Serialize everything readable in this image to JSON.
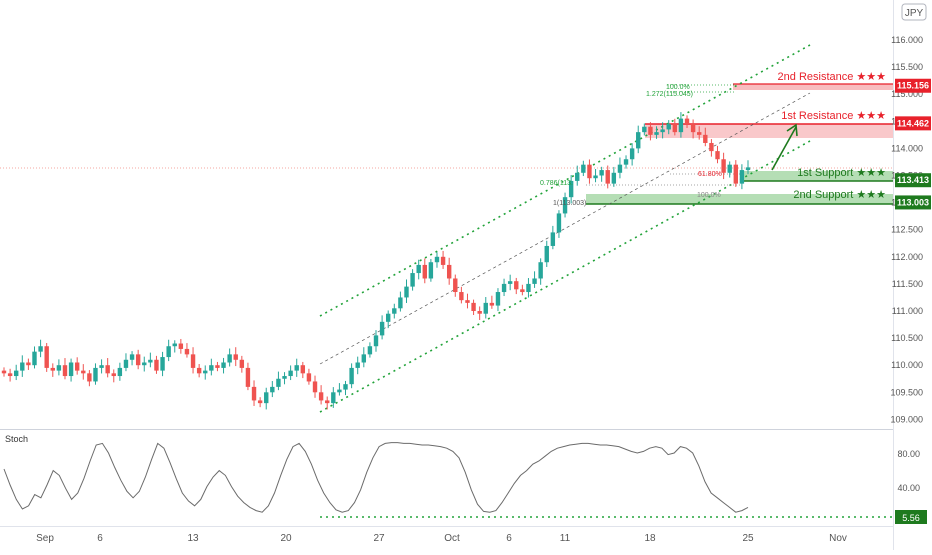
{
  "header": {
    "symbol": "JPY"
  },
  "price_axis": {
    "ticks": [
      "116.000",
      "115.500",
      "115.000",
      "114.500",
      "114.000",
      "113.500",
      "113.000",
      "112.500",
      "112.000",
      "111.500",
      "111.000",
      "110.500",
      "110.000",
      "109.500",
      "109.000"
    ],
    "badges": [
      {
        "value": "115.156",
        "color": "#e8212b"
      },
      {
        "value": "114.462",
        "color": "#e8212b"
      },
      {
        "value": "113.413",
        "color": "#1e7a1e"
      },
      {
        "value": "113.003",
        "color": "#1e7a1e"
      }
    ]
  },
  "date_axis": {
    "labels": [
      "Sep",
      "6",
      "13",
      "20",
      "27",
      "Oct",
      "6",
      "11",
      "18",
      "25",
      "Nov"
    ]
  },
  "levels": {
    "r2": {
      "label": "2nd Resistance ★★★",
      "price": 115.156,
      "color": "#e8212b"
    },
    "r1": {
      "label": "1st Resistance ★★★",
      "price": 114.462,
      "color": "#e8212b"
    },
    "s1": {
      "label": "1st Support ★★★",
      "price": 113.413,
      "color": "#1e7a1e"
    },
    "s2": {
      "label": "2nd Support ★★★",
      "price": 113.003,
      "color": "#1e7a1e"
    }
  },
  "fib_labels": {
    "f100_top": "100.0%",
    "f1272": "1.272(115.045)",
    "f618": "61.80%",
    "f786": "0.786(113.",
    "f100": "100.0%",
    "f1": "1(113.003)"
  },
  "stoch": {
    "title": "Stoch",
    "ticks": [
      "80.00",
      "40.00"
    ],
    "current": "5.56",
    "color": "#1e7a1e"
  },
  "chart_data": {
    "type": "candlestick",
    "instrument": "JPY",
    "ylim": [
      108.9,
      116.55
    ],
    "price_ticks": [
      116.0,
      115.5,
      115.0,
      114.5,
      114.0,
      113.5,
      113.0,
      112.5,
      112.0,
      111.5,
      111.0,
      110.5,
      110.0,
      109.5,
      109.0
    ],
    "x_labels": [
      "Sep",
      "6",
      "13",
      "20",
      "27",
      "Oct",
      "6",
      "11",
      "18",
      "25",
      "Nov"
    ],
    "close_series": [
      109.85,
      109.8,
      109.9,
      110.05,
      110.0,
      110.25,
      110.35,
      109.95,
      109.9,
      110.0,
      109.8,
      110.05,
      109.9,
      109.85,
      109.7,
      109.95,
      110.0,
      109.85,
      109.8,
      109.95,
      110.1,
      110.2,
      110.0,
      110.05,
      110.1,
      109.9,
      110.15,
      110.35,
      110.4,
      110.3,
      110.2,
      109.95,
      109.85,
      109.9,
      110.0,
      109.95,
      110.05,
      110.2,
      110.1,
      109.95,
      109.6,
      109.35,
      109.3,
      109.5,
      109.6,
      109.75,
      109.8,
      109.9,
      110.0,
      109.85,
      109.7,
      109.5,
      109.35,
      109.3,
      109.5,
      109.55,
      109.65,
      109.95,
      110.05,
      110.2,
      110.35,
      110.55,
      110.8,
      110.95,
      111.05,
      111.25,
      111.45,
      111.7,
      111.85,
      111.6,
      111.9,
      112.0,
      111.85,
      111.6,
      111.35,
      111.2,
      111.15,
      111.0,
      110.95,
      111.15,
      111.1,
      111.35,
      111.5,
      111.55,
      111.4,
      111.35,
      111.5,
      111.6,
      111.9,
      112.2,
      112.45,
      112.8,
      113.1,
      113.4,
      113.55,
      113.7,
      113.45,
      113.5,
      113.6,
      113.35,
      113.55,
      113.7,
      113.8,
      114.0,
      114.3,
      114.4,
      114.25,
      114.3,
      114.35,
      114.45,
      114.3,
      114.55,
      114.45,
      114.3,
      114.25,
      114.1,
      113.95,
      113.8,
      113.55,
      113.7,
      113.35,
      113.6,
      113.65
    ],
    "levels": [
      {
        "name": "2nd Resistance",
        "value": 115.156
      },
      {
        "name": "1st Resistance",
        "value": 114.462
      },
      {
        "name": "1st Support",
        "value": 113.413
      },
      {
        "name": "2nd Support",
        "value": 113.003
      }
    ],
    "fibonacci": [
      {
        "label": "1.272",
        "value": 115.045
      },
      {
        "label": "1",
        "value": 113.003
      }
    ],
    "stochastic": {
      "ylim": [
        0,
        100
      ],
      "ticks": [
        80,
        40
      ],
      "current": 5.56,
      "values": [
        60,
        40,
        22,
        10,
        14,
        28,
        24,
        40,
        58,
        52,
        36,
        22,
        30,
        48,
        70,
        90,
        92,
        80,
        62,
        46,
        32,
        24,
        32,
        50,
        72,
        92,
        86,
        68,
        48,
        30,
        20,
        14,
        22,
        38,
        50,
        58,
        52,
        38,
        26,
        18,
        12,
        8,
        6,
        14,
        30,
        52,
        72,
        88,
        92,
        82,
        66,
        46,
        30,
        18,
        9,
        6,
        8,
        18,
        34,
        56,
        74,
        88,
        92,
        93,
        93,
        92,
        92,
        91,
        90,
        90,
        89,
        88,
        86,
        82,
        74,
        56,
        34,
        16,
        7,
        6,
        8,
        18,
        30,
        42,
        52,
        58,
        66,
        70,
        76,
        82,
        86,
        88,
        90,
        91,
        92,
        92,
        91,
        90,
        90,
        89,
        88,
        85,
        82,
        80,
        82,
        86,
        88,
        86,
        78,
        80,
        88,
        86,
        80,
        64,
        44,
        30,
        24,
        18,
        12,
        6,
        8,
        12
      ]
    }
  }
}
